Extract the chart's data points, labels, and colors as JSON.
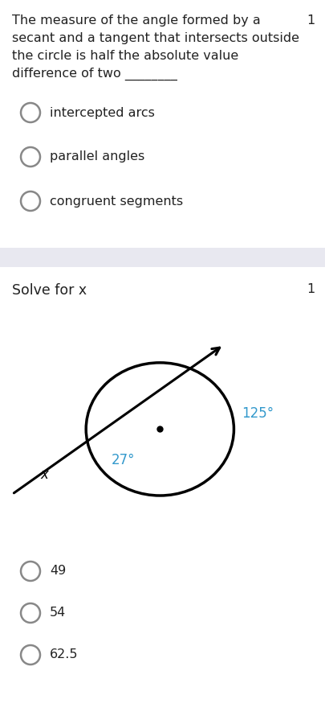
{
  "bg_color": "#ffffff",
  "separator_color": "#e8e8f0",
  "q1_text_lines": [
    "The measure of the angle formed by a",
    "secant and a tangent that intersects outside",
    "the circle is half the absolute value",
    "difference of two ________"
  ],
  "q1_number": "1",
  "q1_options": [
    "intercepted arcs",
    "parallel angles",
    "congruent segments"
  ],
  "q2_text": "Solve for x",
  "q2_number": "1",
  "q2_options": [
    "49",
    "54",
    "62.5"
  ],
  "arc_label": "27°",
  "arc_label_color": "#3399cc",
  "outer_label": "125°",
  "outer_label_color": "#3399cc",
  "x_label": "x",
  "text_color": "#222222",
  "option_circle_color": "#888888",
  "font_size_question": 11.5,
  "font_size_option": 11.5,
  "font_size_number": 11.5
}
